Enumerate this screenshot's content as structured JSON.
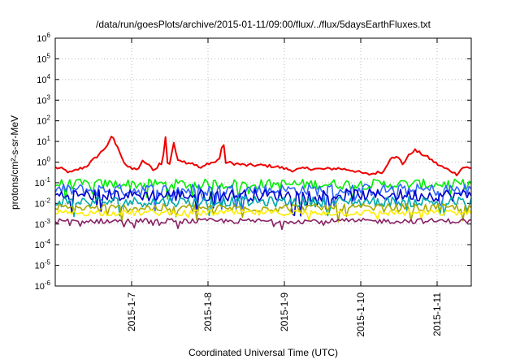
{
  "chart_data": {
    "type": "line",
    "title": "/data/run/goesPlots/archive/2015-01-11/09:00/flux/../flux/5daysEarthFluxes.txt",
    "xlabel": "Coordinated Universal Time (UTC)",
    "ylabel": "protons/cm²-s-sr-MeV",
    "y_scale": "log",
    "ylim_exp": [
      -6,
      6
    ],
    "y_tick_exponents": [
      -6,
      -5,
      -4,
      -3,
      -2,
      -1,
      0,
      1,
      2,
      3,
      4,
      5,
      6
    ],
    "x_start": "2015-01-06 00:00",
    "x_end": "2015-01-11 10:00",
    "x_tick_labels": [
      "2015-1-7",
      "2015-1-8",
      "2015-1-9",
      "2015-1-10",
      "2015-1-11"
    ],
    "x_tick_days": [
      1,
      2,
      3,
      4,
      5
    ],
    "grid": true,
    "series": [
      {
        "color": "#ee0000",
        "keyframes": [
          [
            0.0,
            0.55
          ],
          [
            0.1,
            0.45
          ],
          [
            0.2,
            0.3
          ],
          [
            0.3,
            0.45
          ],
          [
            0.4,
            0.6
          ],
          [
            0.5,
            1.3
          ],
          [
            0.6,
            3.0
          ],
          [
            0.7,
            8.0
          ],
          [
            0.75,
            20.0
          ],
          [
            0.8,
            6.0
          ],
          [
            0.85,
            3.0
          ],
          [
            0.9,
            1.0
          ],
          [
            0.95,
            0.6
          ],
          [
            1.0,
            0.45
          ],
          [
            1.1,
            0.5
          ],
          [
            1.15,
            1.2
          ],
          [
            1.2,
            0.8
          ],
          [
            1.3,
            0.4
          ],
          [
            1.38,
            1.0
          ],
          [
            1.4,
            0.6
          ],
          [
            1.45,
            30.0
          ],
          [
            1.48,
            0.2
          ],
          [
            1.5,
            1.0
          ],
          [
            1.55,
            8.0
          ],
          [
            1.6,
            1.5
          ],
          [
            1.7,
            1.0
          ],
          [
            1.8,
            0.9
          ],
          [
            1.9,
            0.5
          ],
          [
            1.95,
            0.6
          ],
          [
            2.0,
            0.9
          ],
          [
            2.1,
            1.0
          ],
          [
            2.15,
            1.5
          ],
          [
            2.2,
            12.0
          ],
          [
            2.22,
            1.0
          ],
          [
            2.3,
            0.9
          ],
          [
            2.5,
            0.7
          ],
          [
            2.7,
            0.7
          ],
          [
            2.9,
            0.6
          ],
          [
            3.1,
            0.4
          ],
          [
            3.3,
            0.5
          ],
          [
            3.5,
            0.45
          ],
          [
            3.7,
            0.5
          ],
          [
            3.9,
            0.4
          ],
          [
            4.0,
            0.3
          ],
          [
            4.1,
            0.25
          ],
          [
            4.2,
            0.3
          ],
          [
            4.3,
            0.35
          ],
          [
            4.4,
            2.0
          ],
          [
            4.5,
            1.5
          ],
          [
            4.55,
            0.8
          ],
          [
            4.6,
            1.5
          ],
          [
            4.65,
            2.5
          ],
          [
            4.7,
            4.0
          ],
          [
            4.75,
            3.0
          ],
          [
            4.8,
            2.5
          ],
          [
            4.9,
            1.5
          ],
          [
            5.0,
            0.8
          ],
          [
            5.1,
            0.5
          ],
          [
            5.2,
            0.35
          ],
          [
            5.25,
            0.25
          ],
          [
            5.3,
            0.4
          ],
          [
            5.35,
            0.6
          ],
          [
            5.42,
            0.5
          ]
        ],
        "keyframe_note": "day-offset (days after 2015-1-6 00:00) and flux value"
      },
      {
        "color": "#00ee00",
        "baseline": 0.085,
        "noise": 0.5
      },
      {
        "color": "#3366ff",
        "baseline": 0.045,
        "noise": 0.6
      },
      {
        "color": "#0000cc",
        "baseline": 0.025,
        "noise": 0.6
      },
      {
        "color": "#00aaaa",
        "baseline": 0.012,
        "noise": 0.5
      },
      {
        "color": "#aaaa00",
        "baseline": 0.006,
        "noise": 0.4
      },
      {
        "color": "#ffee00",
        "baseline": 0.0035,
        "noise": 0.3
      },
      {
        "color": "#882266",
        "baseline": 0.0014,
        "noise": 0.25
      }
    ]
  }
}
